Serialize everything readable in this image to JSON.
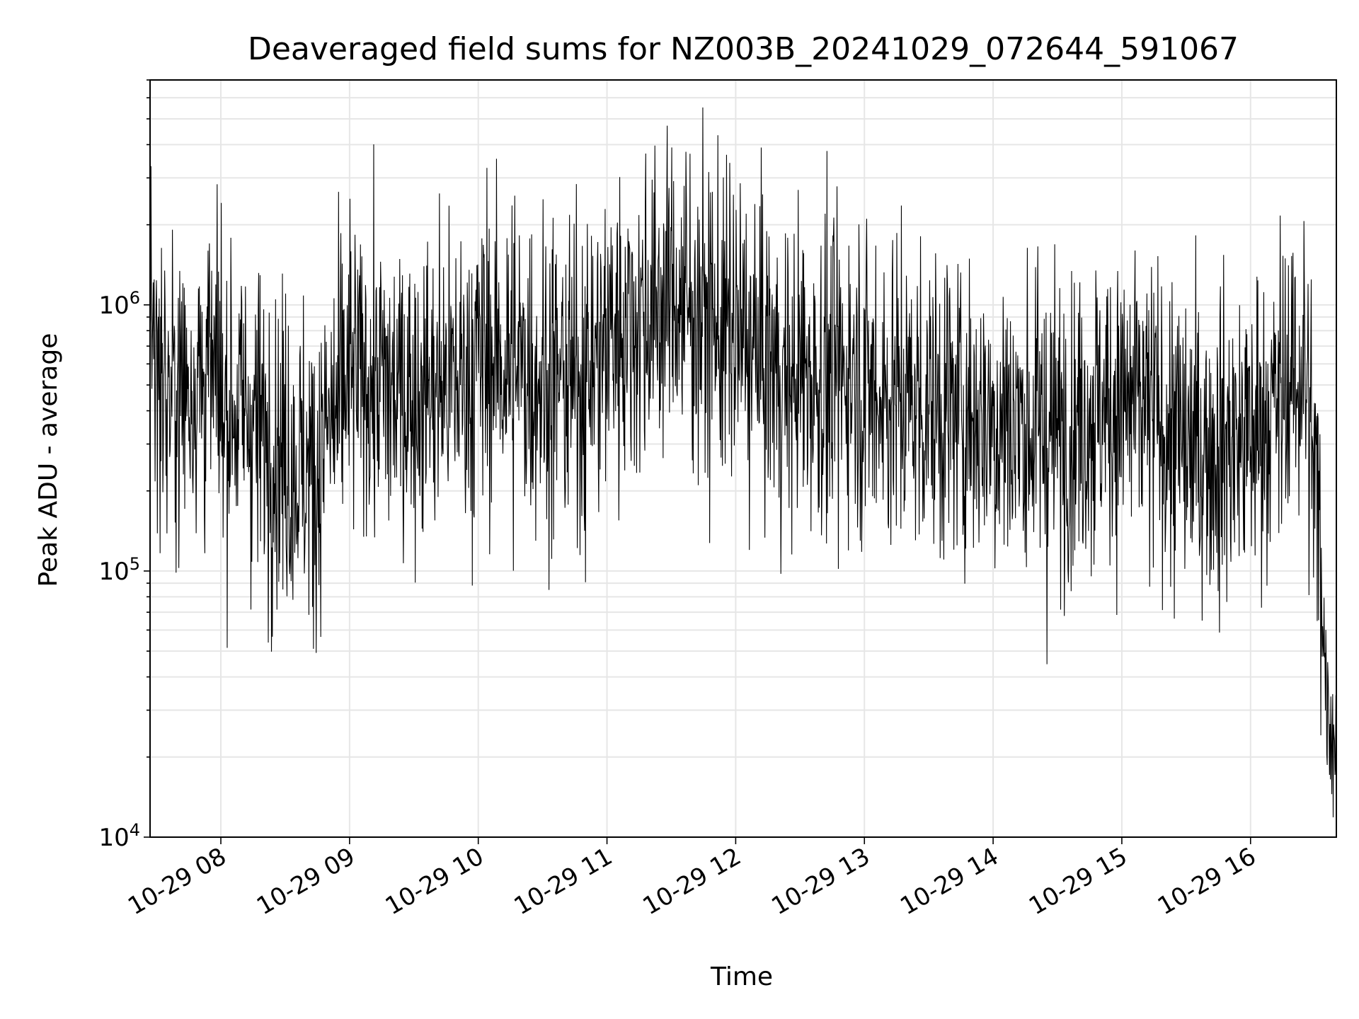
{
  "chart_data": {
    "type": "line",
    "title": "Deaveraged field sums for NZ003B_20241029_072644_591067",
    "xlabel": "Time",
    "ylabel": "Peak ADU - average",
    "yscale": "log",
    "ylim": [
      10000,
      7000000
    ],
    "xlim": [
      "10-29 07:27",
      "10-29 16:40"
    ],
    "grid": true,
    "legend": "none",
    "x_ticks": [
      "10-29 08",
      "10-29 09",
      "10-29 10",
      "10-29 11",
      "10-29 12",
      "10-29 13",
      "10-29 14",
      "10-29 15",
      "10-29 16"
    ],
    "y_ticks": [
      {
        "value": 10000,
        "base": "10",
        "exp": "4"
      },
      {
        "value": 100000,
        "base": "10",
        "exp": "5"
      },
      {
        "value": 1000000,
        "base": "10",
        "exp": "6"
      }
    ],
    "line_color": "#000000",
    "series": [
      {
        "x": [
          "10-29 07:27",
          "10-29 07:35",
          "10-29 07:45",
          "10-29 07:55",
          "10-29 08:00",
          "10-29 08:10",
          "10-29 08:17",
          "10-29 08:25",
          "10-29 08:35",
          "10-29 08:45",
          "10-29 08:47",
          "10-29 08:55",
          "10-29 09:00",
          "10-29 09:15",
          "10-29 09:20",
          "10-29 09:30",
          "10-29 09:45",
          "10-29 09:58",
          "10-29 10:00",
          "10-29 10:15",
          "10-29 10:30",
          "10-29 10:45",
          "10-29 11:00",
          "10-29 11:01",
          "10-29 11:15",
          "10-29 11:25",
          "10-29 11:30",
          "10-29 11:45",
          "10-29 12:00",
          "10-29 12:15",
          "10-29 12:25",
          "10-29 12:30",
          "10-29 12:45",
          "10-29 12:55",
          "10-29 13:00",
          "10-29 13:15",
          "10-29 13:30",
          "10-29 13:45",
          "10-29 14:00",
          "10-29 14:15",
          "10-29 14:30",
          "10-29 14:45",
          "10-29 15:00",
          "10-29 15:15",
          "10-29 15:30",
          "10-29 15:45",
          "10-29 16:00",
          "10-29 16:15",
          "10-29 16:25",
          "10-29 16:32",
          "10-29 16:35",
          "10-29 16:38",
          "10-29 16:40"
        ],
        "values": [
          800000,
          450000,
          500000,
          550000,
          450000,
          400000,
          350000,
          300000,
          250000,
          230000,
          300000,
          400000,
          550000,
          500000,
          450000,
          480000,
          500000,
          550000,
          650000,
          600000,
          550000,
          500000,
          700000,
          800000,
          900000,
          1000000,
          1100000,
          900000,
          750000,
          600000,
          500000,
          550000,
          520000,
          600000,
          500000,
          450000,
          420000,
          400000,
          380000,
          350000,
          330000,
          400000,
          420000,
          380000,
          280000,
          300000,
          320000,
          450000,
          600000,
          150000,
          40000,
          25000,
          22000
        ]
      }
    ]
  }
}
